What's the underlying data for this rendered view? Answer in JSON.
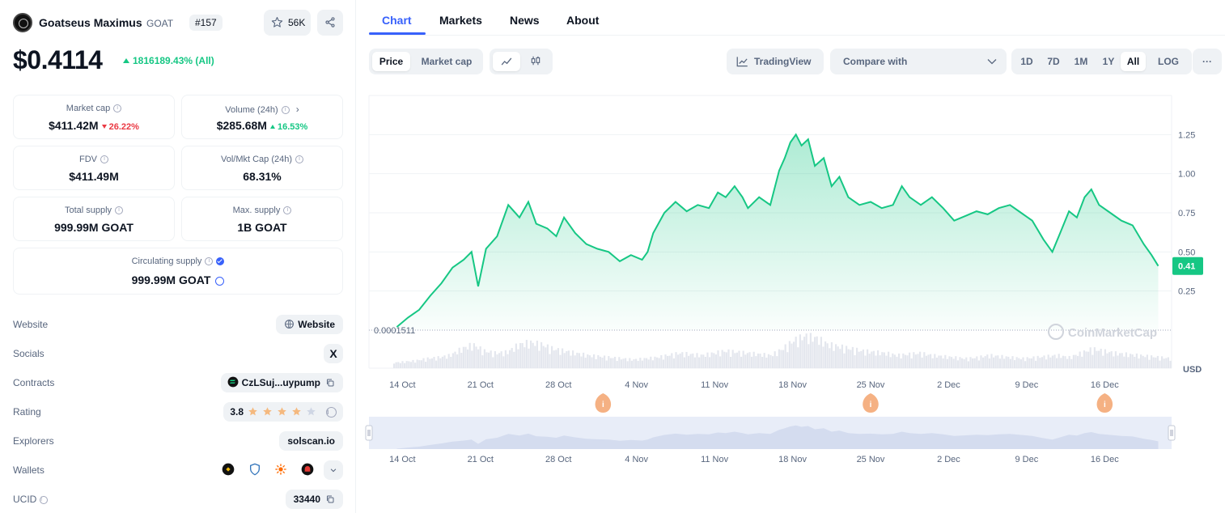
{
  "coin": {
    "name": "Goatseus Maximus",
    "symbol": "GOAT",
    "rank": "#157",
    "watchlist_count": "56K",
    "price": "$0.4114",
    "price_change": "1816189.43% (All)"
  },
  "stats": {
    "market_cap": {
      "label": "Market cap",
      "value": "$411.42M",
      "change": "26.22%"
    },
    "volume": {
      "label": "Volume (24h)",
      "value": "$285.68M",
      "change": "16.53%"
    },
    "fdv": {
      "label": "FDV",
      "value": "$411.49M"
    },
    "vol_mkt_cap": {
      "label": "Vol/Mkt Cap (24h)",
      "value": "68.31%"
    },
    "total_supply": {
      "label": "Total supply",
      "value": "999.99M GOAT"
    },
    "max_supply": {
      "label": "Max. supply",
      "value": "1B GOAT"
    },
    "circulating_supply": {
      "label": "Circulating supply",
      "value": "999.99M GOAT"
    }
  },
  "links": {
    "website": {
      "label": "Website",
      "value": "Website"
    },
    "socials": {
      "label": "Socials",
      "value": "X"
    },
    "contracts": {
      "label": "Contracts",
      "value": "CzLSuj...uypump"
    },
    "rating": {
      "label": "Rating",
      "value": "3.8",
      "stars": 3.8
    },
    "explorers": {
      "label": "Explorers",
      "value": "solscan.io"
    },
    "wallets": {
      "label": "Wallets"
    },
    "ucid": {
      "label": "UCID",
      "value": "33440"
    }
  },
  "tabs": [
    "Chart",
    "Markets",
    "News",
    "About"
  ],
  "chart_controls": {
    "price_label": "Price",
    "market_cap_label": "Market cap",
    "tradingview_label": "TradingView",
    "compare_label": "Compare with",
    "ranges": [
      "1D",
      "7D",
      "1M",
      "1Y",
      "All",
      "LOG"
    ],
    "selected_range": "All",
    "more": "···"
  },
  "colors": {
    "accent": "#3861fb",
    "up": "#16c784",
    "down": "#ea3943",
    "event_marker": "#f5b183"
  },
  "chart_data": {
    "type": "line",
    "currency_label": "USD",
    "watermark": "CoinMarketCap",
    "current_price_label": "0.41",
    "min_label": "0.0001511",
    "y_ticks": [
      "0.25",
      "0.50",
      "0.75",
      "1.00",
      "1.25"
    ],
    "ylim": [
      0,
      1.5
    ],
    "x_ticks": [
      "14 Oct",
      "21 Oct",
      "28 Oct",
      "4 Nov",
      "11 Nov",
      "18 Nov",
      "25 Nov",
      "2 Dec",
      "9 Dec",
      "16 Dec"
    ],
    "x_day_range": [
      0,
      72
    ],
    "x_tick_days": [
      3,
      10,
      17,
      24,
      31,
      38,
      45,
      52,
      59,
      66
    ],
    "series": [
      {
        "values": [
          [
            2.5,
            0.02
          ],
          [
            3.5,
            0.08
          ],
          [
            4.5,
            0.13
          ],
          [
            5.5,
            0.22
          ],
          [
            6.5,
            0.3
          ],
          [
            7.5,
            0.4
          ],
          [
            8.5,
            0.45
          ],
          [
            9.2,
            0.5
          ],
          [
            9.8,
            0.28
          ],
          [
            10.5,
            0.52
          ],
          [
            11.5,
            0.6
          ],
          [
            12.5,
            0.8
          ],
          [
            13.5,
            0.72
          ],
          [
            14.3,
            0.82
          ],
          [
            15,
            0.68
          ],
          [
            16,
            0.65
          ],
          [
            16.8,
            0.6
          ],
          [
            17.5,
            0.72
          ],
          [
            18.5,
            0.62
          ],
          [
            19.5,
            0.55
          ],
          [
            20.5,
            0.52
          ],
          [
            21.5,
            0.5
          ],
          [
            22.5,
            0.44
          ],
          [
            23.5,
            0.48
          ],
          [
            24.5,
            0.45
          ],
          [
            25,
            0.5
          ],
          [
            25.5,
            0.62
          ],
          [
            26.5,
            0.75
          ],
          [
            27.5,
            0.82
          ],
          [
            28.5,
            0.76
          ],
          [
            29.5,
            0.8
          ],
          [
            30.5,
            0.78
          ],
          [
            31.3,
            0.88
          ],
          [
            32,
            0.85
          ],
          [
            32.8,
            0.92
          ],
          [
            33.5,
            0.85
          ],
          [
            34,
            0.78
          ],
          [
            35,
            0.85
          ],
          [
            36,
            0.8
          ],
          [
            36.8,
            1.02
          ],
          [
            37.3,
            1.1
          ],
          [
            37.8,
            1.2
          ],
          [
            38.3,
            1.25
          ],
          [
            38.8,
            1.18
          ],
          [
            39.4,
            1.22
          ],
          [
            40,
            1.05
          ],
          [
            40.8,
            1.1
          ],
          [
            41.5,
            0.92
          ],
          [
            42.2,
            0.98
          ],
          [
            43,
            0.85
          ],
          [
            44,
            0.8
          ],
          [
            45,
            0.82
          ],
          [
            46,
            0.78
          ],
          [
            47,
            0.8
          ],
          [
            47.8,
            0.92
          ],
          [
            48.5,
            0.85
          ],
          [
            49.5,
            0.8
          ],
          [
            50.5,
            0.85
          ],
          [
            51.5,
            0.78
          ],
          [
            52.5,
            0.7
          ],
          [
            53.5,
            0.73
          ],
          [
            54.5,
            0.76
          ],
          [
            55.5,
            0.74
          ],
          [
            56.5,
            0.78
          ],
          [
            57.5,
            0.8
          ],
          [
            58.5,
            0.75
          ],
          [
            59.5,
            0.7
          ],
          [
            60.5,
            0.58
          ],
          [
            61.3,
            0.5
          ],
          [
            62,
            0.62
          ],
          [
            62.8,
            0.76
          ],
          [
            63.5,
            0.72
          ],
          [
            64.2,
            0.85
          ],
          [
            64.8,
            0.9
          ],
          [
            65.5,
            0.8
          ],
          [
            66.5,
            0.75
          ],
          [
            67.5,
            0.7
          ],
          [
            68.5,
            0.67
          ],
          [
            69.5,
            0.55
          ],
          [
            70.2,
            0.48
          ],
          [
            70.8,
            0.41
          ]
        ]
      }
    ],
    "volume": [
      3,
      4,
      5,
      6,
      7,
      9,
      10,
      12,
      18,
      22,
      16,
      14,
      15,
      22,
      24,
      22,
      18,
      16,
      14,
      12,
      11,
      10,
      9,
      8,
      9,
      10,
      12,
      14,
      13,
      12,
      14,
      16,
      15,
      14,
      13,
      12,
      18,
      26,
      30,
      28,
      22,
      20,
      18,
      16,
      15,
      14,
      12,
      13,
      14,
      12,
      11,
      10,
      9,
      10,
      12,
      11,
      10,
      9,
      10,
      11,
      12,
      10,
      14,
      18,
      16,
      14,
      13,
      12,
      11,
      10,
      9
    ],
    "event_marker_days": [
      21,
      45,
      66
    ]
  }
}
